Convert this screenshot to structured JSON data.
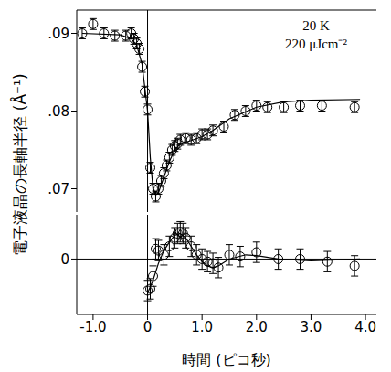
{
  "chart_data": [
    {
      "type": "scatter",
      "ylabel": "電子液晶の長軸半径 (Å⁻¹)",
      "annotations": [
        "20 K",
        "220 μJcm⁻²"
      ],
      "xlim": [
        -1.3,
        4.2
      ],
      "ylim": [
        0.067,
        0.093
      ],
      "yticks": [
        {
          "value": 0.07,
          "label": ".07"
        },
        {
          "value": 0.08,
          "label": ".08"
        },
        {
          "value": 0.09,
          "label": ".09"
        }
      ],
      "tick_labels": "y",
      "reference_x": 0,
      "series": [
        {
          "type": "scatter",
          "marker": "circle_open",
          "color": "#000000",
          "x": [
            -1.2,
            -1.0,
            -0.8,
            -0.6,
            -0.4,
            -0.3,
            -0.25,
            -0.2,
            -0.15,
            -0.1,
            -0.05,
            0,
            0.05,
            0.1,
            0.15,
            0.2,
            0.25,
            0.3,
            0.35,
            0.4,
            0.45,
            0.5,
            0.55,
            0.6,
            0.7,
            0.8,
            0.9,
            1.0,
            1.1,
            1.2,
            1.4,
            1.6,
            1.8,
            2.0,
            2.2,
            2.5,
            2.8,
            3.2,
            3.8
          ],
          "values": [
            0.09,
            0.0912,
            0.09,
            0.0897,
            0.0897,
            0.09,
            0.0893,
            0.0887,
            0.088,
            0.0857,
            0.0825,
            0.0802,
            0.0727,
            0.07,
            0.069,
            0.07,
            0.071,
            0.072,
            0.073,
            0.074,
            0.075,
            0.0755,
            0.0758,
            0.0763,
            0.0765,
            0.0763,
            0.0765,
            0.077,
            0.077,
            0.0775,
            0.078,
            0.0795,
            0.08,
            0.0807,
            0.0805,
            0.0805,
            0.0807,
            0.0807,
            0.0805
          ],
          "error": [
            0.0007,
            0.0007,
            0.0007,
            0.0007,
            0.0007,
            0.0007,
            0.0007,
            0.0007,
            0.0007,
            0.0007,
            0.0007,
            0.0007,
            0.0007,
            0.0007,
            0.0007,
            0.0007,
            0.0007,
            0.0007,
            0.0007,
            0.0007,
            0.0007,
            0.0007,
            0.0007,
            0.0007,
            0.0007,
            0.0007,
            0.0007,
            0.0007,
            0.0007,
            0.0007,
            0.0007,
            0.0007,
            0.0007,
            0.0007,
            0.0007,
            0.0007,
            0.0007,
            0.0007,
            0.0007
          ]
        },
        {
          "type": "line",
          "color": "#000000",
          "x": [
            -1.2,
            -0.5,
            -0.3,
            -0.2,
            -0.1,
            0,
            0.05,
            0.1,
            0.15,
            0.2,
            0.3,
            0.4,
            0.5,
            0.6,
            0.8,
            1.0,
            1.2,
            1.5,
            2.0,
            2.5,
            3.0,
            3.9
          ],
          "values": [
            0.09,
            0.0898,
            0.0893,
            0.0885,
            0.086,
            0.08,
            0.074,
            0.07,
            0.0692,
            0.0695,
            0.0715,
            0.0735,
            0.075,
            0.0758,
            0.0762,
            0.0767,
            0.0775,
            0.079,
            0.0805,
            0.0812,
            0.0814,
            0.0815
          ]
        }
      ]
    },
    {
      "type": "scatter",
      "xlabel": "時間 (ピコ秒)",
      "xlim": [
        -1.3,
        4.2
      ],
      "xticks": [
        {
          "value": -1,
          "label": "-1.0"
        },
        0,
        {
          "value": 1,
          "label": "1.0"
        },
        {
          "value": 2,
          "label": "2.0"
        },
        {
          "value": 3,
          "label": "3.0"
        },
        {
          "value": 4,
          "label": "4.0"
        }
      ],
      "ylim": [
        -0.0065,
        0.0052
      ],
      "yticks": [
        0
      ],
      "reference_x": 0,
      "reference_y": 0,
      "series": [
        {
          "type": "scatter",
          "marker": "circle_open",
          "color": "#000000",
          "x": [
            0,
            0.05,
            0.1,
            0.15,
            0.2,
            0.3,
            0.4,
            0.5,
            0.55,
            0.6,
            0.65,
            0.7,
            0.8,
            0.9,
            1.0,
            1.1,
            1.2,
            1.3,
            1.5,
            1.7,
            2.0,
            2.4,
            2.8,
            3.3,
            3.8
          ],
          "values": [
            -0.0037,
            -0.0035,
            -0.002,
            0.0012,
            0.001,
            0.0005,
            0.0015,
            0.0025,
            0.003,
            0.0032,
            0.003,
            0.0025,
            0.0015,
            0.0005,
            0,
            -0.0003,
            -0.0005,
            -0.001,
            0.0005,
            0.0003,
            0.0008,
            0,
            0,
            -0.0003,
            -0.0008
          ],
          "error": [
            0.0012,
            0.0012,
            0.0012,
            0.0012,
            0.0012,
            0.0012,
            0.0012,
            0.0012,
            0.0012,
            0.0012,
            0.0012,
            0.0012,
            0.0012,
            0.0012,
            0.0012,
            0.0012,
            0.0012,
            0.0012,
            0.0012,
            0.0012,
            0.0012,
            0.0012,
            0.0012,
            0.0012,
            0.0012
          ]
        },
        {
          "type": "line",
          "color": "#000000",
          "x": [
            0,
            0.1,
            0.2,
            0.3,
            0.4,
            0.5,
            0.6,
            0.7,
            0.8,
            0.9,
            1.0,
            1.1,
            1.2,
            1.3,
            1.5,
            1.8,
            2.0,
            2.4,
            3.0,
            3.9
          ],
          "values": [
            -0.004,
            -0.0025,
            -0.0005,
            0.001,
            0.002,
            0.0028,
            0.003,
            0.0025,
            0.0015,
            0.0005,
            -0.0003,
            -0.0008,
            -0.001,
            -0.0008,
            0,
            0.0005,
            0.0004,
            0,
            -0.0002,
            0
          ]
        }
      ]
    }
  ]
}
